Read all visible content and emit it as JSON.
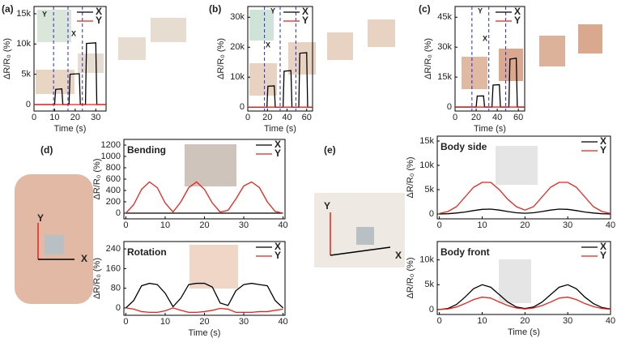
{
  "chart_data": [
    {
      "type": "line",
      "panel_label": "(a)",
      "xlabel": "Time (s)",
      "ylabel": "ΔR/R₀ (%)",
      "inset_labels": [
        "Y",
        "X"
      ],
      "xlim": [
        0,
        35
      ],
      "xticks": [
        0,
        10,
        20,
        30
      ],
      "ylim": [
        -1070,
        16200
      ],
      "yticks": [
        0,
        {
          "value": 5000,
          "label": "5k"
        },
        {
          "value": 10000,
          "label": "10k"
        },
        {
          "value": 15000,
          "label": "15k"
        }
      ],
      "vlines": [
        9.5,
        16.5,
        23.5
      ],
      "legend": "upper right",
      "x": [
        0,
        9.5,
        10,
        10.5,
        13.5,
        14,
        17,
        17.5,
        22,
        22.5,
        25,
        25.5,
        30,
        30.5,
        35
      ],
      "series": [
        {
          "name": "X",
          "color": "#000000",
          "values": [
            0,
            0,
            0,
            2500,
            2600,
            0,
            0,
            5000,
            5100,
            0,
            0,
            10100,
            10200,
            0,
            0
          ]
        },
        {
          "name": "Y",
          "color": "#e8231b",
          "values": [
            0,
            0,
            0,
            0,
            0,
            0,
            0,
            0,
            0,
            0,
            0,
            0,
            0,
            0,
            0
          ]
        }
      ]
    },
    {
      "type": "line",
      "panel_label": "(b)",
      "xlabel": "Time (s)",
      "ylabel": "ΔR/R₀ (%)",
      "inset_labels": [
        "Y",
        "X"
      ],
      "xlim": [
        0,
        66
      ],
      "xticks": [
        0,
        20,
        40,
        60
      ],
      "ylim": [
        -1300,
        33600
      ],
      "yticks": [
        0,
        {
          "value": 10000,
          "label": "10k"
        },
        {
          "value": 20000,
          "label": "20k"
        },
        {
          "value": 30000,
          "label": "30k"
        }
      ],
      "vlines": [
        17,
        33,
        49
      ],
      "legend": "upper right",
      "x": [
        0,
        19,
        19.5,
        20.5,
        27,
        28,
        36,
        37,
        44,
        45,
        52,
        53,
        60,
        61,
        66
      ],
      "series": [
        {
          "name": "X",
          "color": "#000000",
          "values": [
            0,
            0,
            0,
            7000,
            7100,
            0,
            0,
            12000,
            12200,
            0,
            0,
            18000,
            18200,
            0,
            0
          ]
        },
        {
          "name": "Y",
          "color": "#e8231b",
          "values": [
            0,
            0,
            0,
            0,
            0,
            0,
            0,
            0,
            0,
            0,
            0,
            0,
            0,
            0,
            0
          ]
        }
      ]
    },
    {
      "type": "line",
      "panel_label": "(c)",
      "xlabel": "Time (s)",
      "ylabel": "ΔR/R₀ (%)",
      "inset_labels": [
        "Y",
        "X"
      ],
      "xlim": [
        0,
        66
      ],
      "xticks": [
        0,
        20,
        40,
        60
      ],
      "ylim": [
        -2000,
        50400
      ],
      "yticks": [
        0,
        {
          "value": 15000,
          "label": "15k"
        },
        {
          "value": 30000,
          "label": "30k"
        },
        {
          "value": 45000,
          "label": "45k"
        }
      ],
      "vlines": [
        16,
        32,
        48
      ],
      "legend": "upper right",
      "x": [
        0,
        20,
        21,
        27,
        28,
        35,
        36,
        42,
        43,
        51,
        52,
        58,
        59,
        66
      ],
      "series": [
        {
          "name": "X",
          "color": "#000000",
          "values": [
            0,
            0,
            5500,
            5600,
            0,
            0,
            11000,
            11200,
            0,
            0,
            24000,
            24500,
            0,
            0
          ]
        },
        {
          "name": "Y",
          "color": "#e8231b",
          "values": [
            0,
            0,
            0,
            0,
            0,
            0,
            0,
            0,
            0,
            0,
            0,
            0,
            0,
            0
          ]
        }
      ]
    },
    {
      "type": "line",
      "panel_label": "(d)",
      "annotation": "Bending",
      "ylabel": "ΔR/R₀ (%)",
      "photo_labels": [
        "Y",
        "X"
      ],
      "xlim": [
        -0.5,
        40.5
      ],
      "xticks": [
        0,
        10,
        20,
        30,
        40
      ],
      "ylim": [
        -100,
        1300
      ],
      "yticks": [
        0,
        200,
        400,
        600,
        800,
        1000,
        1200
      ],
      "legend": "upper right",
      "x": [
        0,
        2,
        4,
        6,
        8,
        10,
        12,
        14,
        16,
        18,
        20,
        22,
        24,
        26,
        28,
        30,
        32,
        34,
        36,
        38,
        40
      ],
      "series": [
        {
          "name": "X",
          "color": "#000000",
          "values": [
            0,
            0,
            0,
            0,
            0,
            0,
            0,
            0,
            0,
            0,
            0,
            0,
            0,
            0,
            0,
            0,
            0,
            0,
            0,
            0,
            0
          ]
        },
        {
          "name": "Y",
          "color": "#e8231b",
          "values": [
            0,
            150,
            420,
            550,
            450,
            180,
            20,
            200,
            450,
            550,
            420,
            180,
            20,
            50,
            250,
            480,
            550,
            450,
            200,
            30,
            0
          ]
        }
      ]
    },
    {
      "type": "line",
      "annotation": "Rotation",
      "xlabel": "Time (s)",
      "ylabel": "ΔR/R₀ (%)",
      "xlim": [
        -0.5,
        40.5
      ],
      "xticks": [
        0,
        10,
        20,
        30,
        40
      ],
      "ylim": [
        -30,
        270
      ],
      "yticks": [
        0,
        80,
        160,
        240
      ],
      "legend": "upper right",
      "x": [
        0,
        2,
        4,
        6,
        8,
        10,
        12,
        14,
        16,
        18,
        20,
        22,
        24,
        26,
        28,
        30,
        32,
        34,
        36,
        38,
        40
      ],
      "series": [
        {
          "name": "X",
          "color": "#000000",
          "values": [
            0,
            30,
            90,
            100,
            95,
            60,
            5,
            40,
            95,
            100,
            100,
            85,
            20,
            10,
            70,
            95,
            100,
            95,
            90,
            30,
            0
          ]
        },
        {
          "name": "Y",
          "color": "#e8231b",
          "values": [
            0,
            -5,
            -15,
            -18,
            -18,
            -12,
            0,
            -10,
            -18,
            -18,
            -15,
            -10,
            -2,
            -5,
            -18,
            -18,
            -18,
            -15,
            -15,
            -10,
            -5
          ]
        }
      ]
    },
    {
      "type": "line",
      "panel_label": "(e)",
      "annotation": "Body side",
      "ylabel": "ΔR/R₀ (%)",
      "photo_labels": [
        "Y",
        "X"
      ],
      "xlim": [
        -0.5,
        40
      ],
      "xticks": [
        0,
        10,
        20,
        30,
        40
      ],
      "ylim": [
        -1000,
        16000
      ],
      "yticks": [
        0,
        {
          "value": 5000,
          "label": "5k"
        },
        {
          "value": 10000,
          "label": "10k"
        },
        {
          "value": 15000,
          "label": "15k"
        }
      ],
      "legend": "upper right",
      "x": [
        0,
        2,
        4,
        6,
        8,
        10,
        12,
        14,
        16,
        18,
        20,
        22,
        24,
        26,
        28,
        30,
        32,
        34,
        36,
        38,
        40
      ],
      "series": [
        {
          "name": "X",
          "color": "#000000",
          "values": [
            0,
            50,
            200,
            400,
            700,
            950,
            1000,
            800,
            500,
            250,
            150,
            250,
            500,
            800,
            1000,
            950,
            700,
            400,
            200,
            50,
            0
          ]
        },
        {
          "name": "Y",
          "color": "#e8231b",
          "values": [
            100,
            500,
            1500,
            3500,
            5500,
            6500,
            6500,
            5000,
            3000,
            1500,
            800,
            1500,
            3500,
            5500,
            6500,
            6500,
            5500,
            3500,
            1500,
            500,
            100
          ]
        }
      ]
    },
    {
      "type": "line",
      "annotation": "Body front",
      "xlabel": "Time (s)",
      "ylabel": "ΔR/R₀ (%)",
      "xlim": [
        -0.5,
        40
      ],
      "xticks": [
        0,
        10,
        20,
        30,
        40
      ],
      "ylim": [
        -1000,
        13700
      ],
      "yticks": [
        0,
        {
          "value": 5000,
          "label": "5k"
        },
        {
          "value": 10000,
          "label": "10k"
        }
      ],
      "legend": "upper right",
      "x": [
        0,
        2,
        4,
        6,
        8,
        10,
        12,
        14,
        16,
        18,
        20,
        22,
        24,
        26,
        28,
        30,
        32,
        34,
        36,
        38,
        40
      ],
      "series": [
        {
          "name": "X",
          "color": "#000000",
          "values": [
            0,
            200,
            1000,
            2500,
            4200,
            5000,
            4500,
            3000,
            1500,
            500,
            200,
            500,
            1500,
            3000,
            4500,
            5000,
            4200,
            2500,
            1200,
            400,
            100
          ]
        },
        {
          "name": "Y",
          "color": "#e8231b",
          "values": [
            0,
            100,
            500,
            1200,
            2000,
            2500,
            2300,
            1500,
            800,
            300,
            100,
            300,
            800,
            1500,
            2300,
            2500,
            2000,
            1200,
            600,
            200,
            50
          ]
        }
      ]
    }
  ]
}
